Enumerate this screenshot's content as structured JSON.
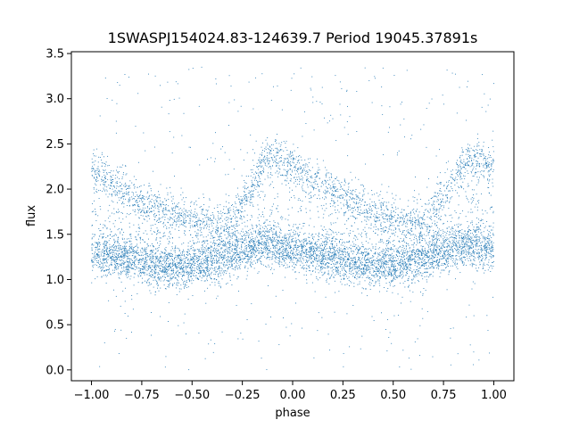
{
  "chart_data": {
    "type": "scatter",
    "title": "1SWASPJ154024.83-124639.7 Period 19045.37891s",
    "xlabel": "phase",
    "ylabel": "flux",
    "xlim": [
      -1.1,
      1.1
    ],
    "ylim": [
      -0.12,
      3.52
    ],
    "xticks": [
      -1.0,
      -0.75,
      -0.5,
      -0.25,
      0.0,
      0.25,
      0.5,
      0.75,
      1.0
    ],
    "xtick_labels": [
      "−1.00",
      "−0.75",
      "−0.50",
      "−0.25",
      "0.00",
      "0.25",
      "0.50",
      "0.75",
      "1.00"
    ],
    "yticks": [
      0.0,
      0.5,
      1.0,
      1.5,
      2.0,
      2.5,
      3.0,
      3.5
    ],
    "ytick_labels": [
      "0.0",
      "0.5",
      "1.0",
      "1.5",
      "2.0",
      "2.5",
      "3.0",
      "3.5"
    ],
    "grid": false,
    "point_color": "#1f77b4",
    "phase_range": [
      -1.0,
      1.0
    ],
    "series": [
      {
        "component": "baseline-band",
        "points": [
          [
            -1.0,
            1.3
          ],
          [
            -0.9,
            1.27
          ],
          [
            -0.8,
            1.22
          ],
          [
            -0.7,
            1.17
          ],
          [
            -0.6,
            1.14
          ],
          [
            -0.5,
            1.15
          ],
          [
            -0.4,
            1.2
          ],
          [
            -0.3,
            1.28
          ],
          [
            -0.2,
            1.36
          ],
          [
            -0.1,
            1.38
          ],
          [
            0.0,
            1.33
          ],
          [
            0.1,
            1.28
          ],
          [
            0.2,
            1.24
          ],
          [
            0.3,
            1.19
          ],
          [
            0.4,
            1.15
          ],
          [
            0.5,
            1.14
          ],
          [
            0.6,
            1.19
          ],
          [
            0.7,
            1.27
          ],
          [
            0.8,
            1.35
          ],
          [
            0.9,
            1.37
          ],
          [
            1.0,
            1.33
          ]
        ],
        "scatter": 0.12
      },
      {
        "component": "upper-band",
        "points": [
          [
            -1.0,
            2.2
          ],
          [
            -0.9,
            2.07
          ],
          [
            -0.8,
            1.93
          ],
          [
            -0.7,
            1.82
          ],
          [
            -0.6,
            1.73
          ],
          [
            -0.5,
            1.66
          ],
          [
            -0.4,
            1.6
          ],
          [
            -0.3,
            1.65
          ],
          [
            -0.2,
            2.05
          ],
          [
            -0.13,
            2.38
          ],
          [
            -0.05,
            2.33
          ],
          [
            0.05,
            2.18
          ],
          [
            0.15,
            2.05
          ],
          [
            0.25,
            1.92
          ],
          [
            0.35,
            1.8
          ],
          [
            0.45,
            1.7
          ],
          [
            0.55,
            1.62
          ],
          [
            0.65,
            1.62
          ],
          [
            0.75,
            1.9
          ],
          [
            0.85,
            2.33
          ],
          [
            0.93,
            2.32
          ],
          [
            1.0,
            2.25
          ]
        ],
        "scatter": 0.11
      }
    ],
    "outlier_range": [
      0.0,
      3.35
    ]
  }
}
